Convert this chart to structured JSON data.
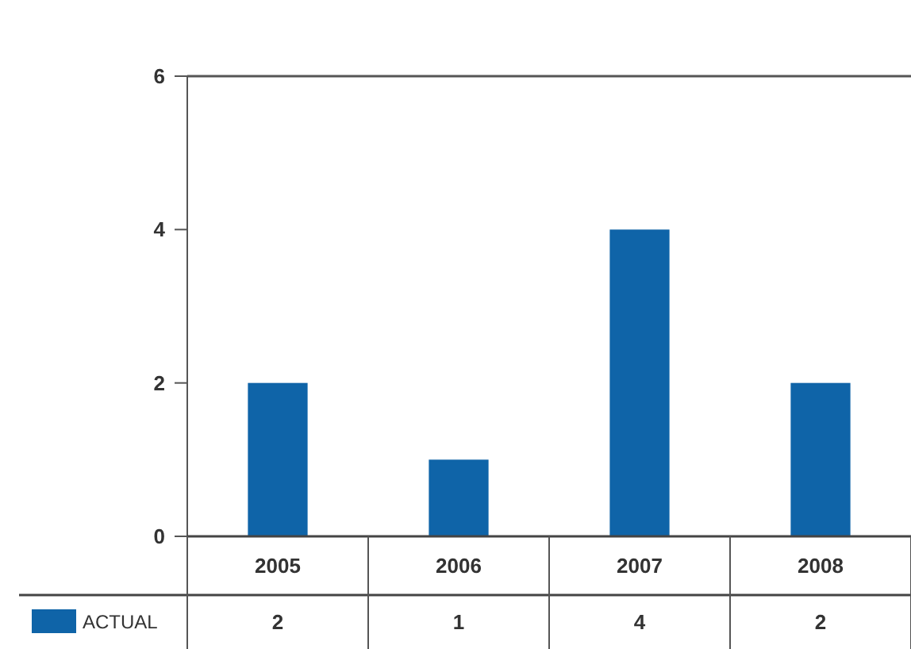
{
  "chart_data": {
    "type": "bar",
    "categories": [
      "2005",
      "2006",
      "2007",
      "2008"
    ],
    "series": [
      {
        "name": "ACTUAL",
        "color": "#0f64a8",
        "values": [
          2,
          1,
          4,
          2
        ]
      }
    ],
    "ylim": [
      0,
      6
    ],
    "yticks": [
      0,
      2,
      4,
      6
    ],
    "grid": false,
    "data_labels": true,
    "legend": "bottom"
  }
}
